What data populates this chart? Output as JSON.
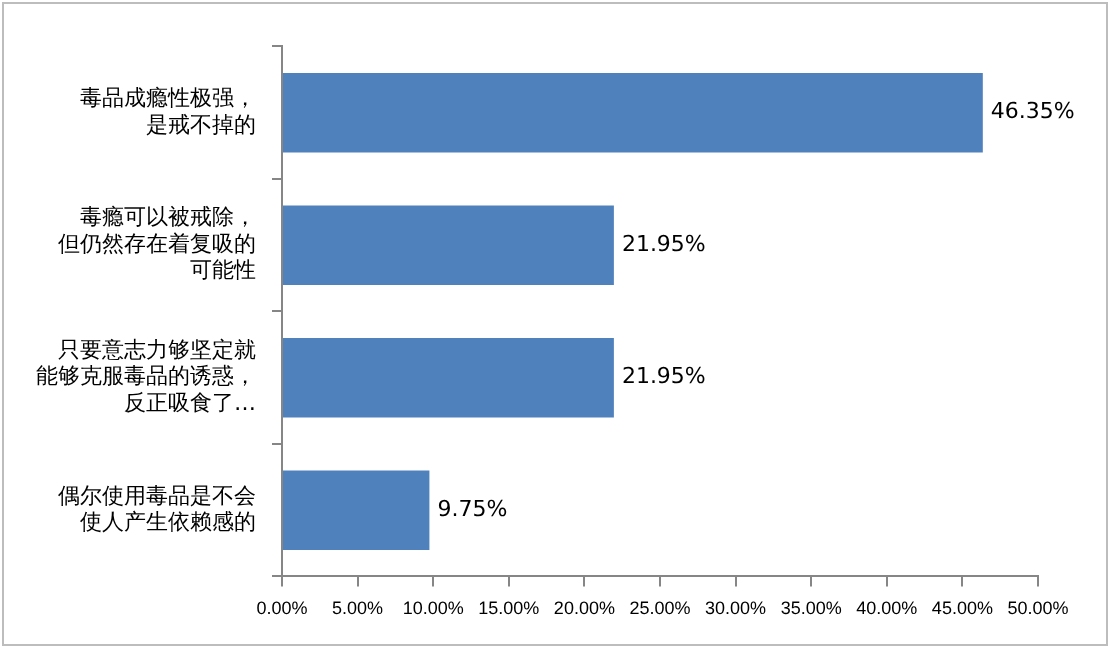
{
  "chart_data": {
    "type": "bar",
    "orientation": "horizontal",
    "categories": [
      "毒品成瘾性极强，是戒不掉的",
      "毒瘾可以被戒除，但仍然存在着复吸的可能性",
      "只要意志力够坚定就能够克服毒品的诱惑，反正吸食了…",
      "偶尔使用毒品是不会使人产生依赖感的"
    ],
    "values": [
      46.35,
      21.95,
      21.95,
      9.75
    ],
    "value_labels": [
      "46.35%",
      "21.95%",
      "21.95%",
      "9.75%"
    ],
    "color": "#4f81bd",
    "xlim": [
      0,
      50
    ],
    "xticks": [
      {
        "value": 0,
        "label": "0.00%"
      },
      {
        "value": 5,
        "label": "5.00%"
      },
      {
        "value": 10,
        "label": "10.00%"
      },
      {
        "value": 15,
        "label": "15.00%"
      },
      {
        "value": 20,
        "label": "20.00%"
      },
      {
        "value": 25,
        "label": "25.00%"
      },
      {
        "value": 30,
        "label": "30.00%"
      },
      {
        "value": 35,
        "label": "35.00%"
      },
      {
        "value": 40,
        "label": "40.00%"
      },
      {
        "value": 45,
        "label": "45.00%"
      },
      {
        "value": 50,
        "label": "50.00%"
      }
    ],
    "grid": false,
    "legend": false
  }
}
